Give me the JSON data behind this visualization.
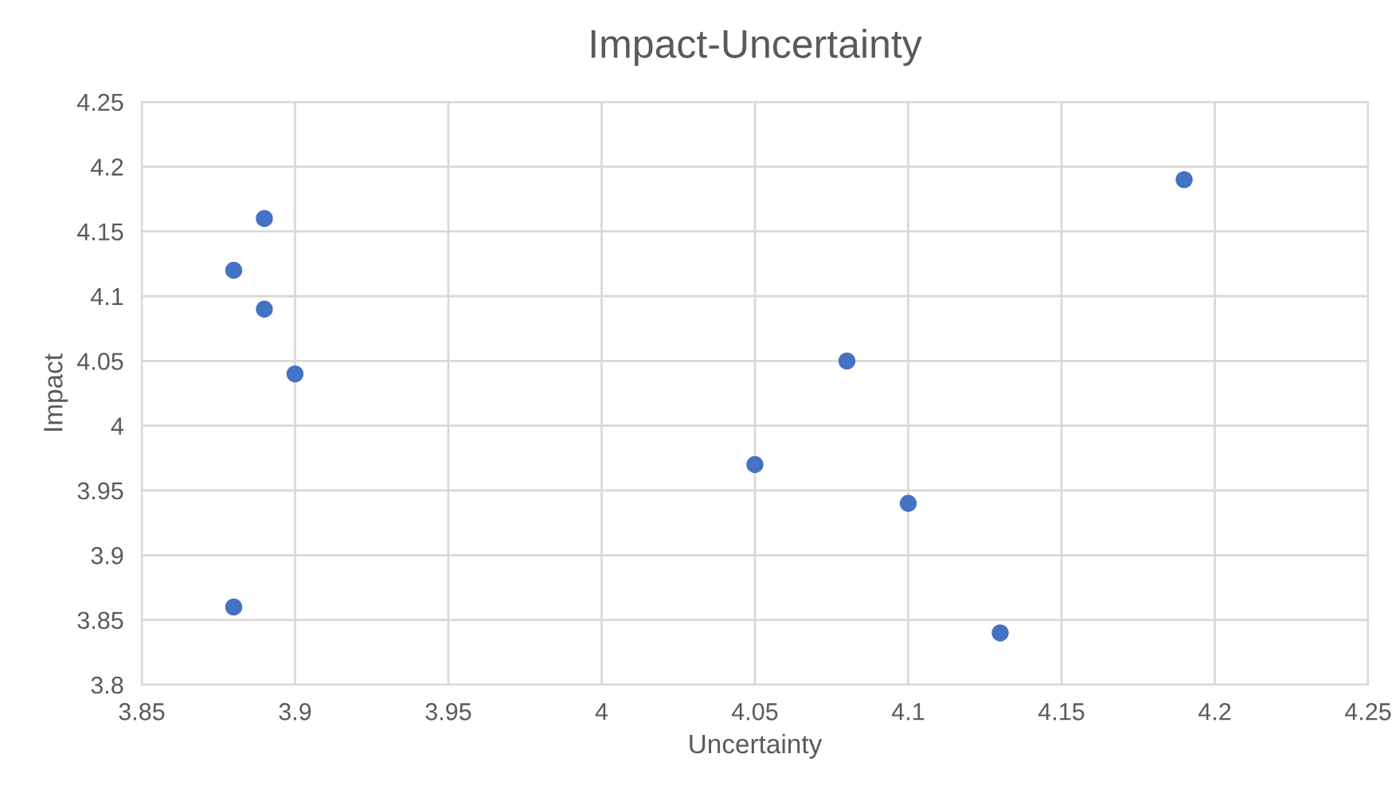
{
  "chart_data": {
    "type": "scatter",
    "title": "Impact-Uncertainty",
    "xlabel": "Uncertainty",
    "ylabel": "Impact",
    "x": [
      3.89,
      3.88,
      3.89,
      3.9,
      3.88,
      4.19,
      4.08,
      4.05,
      4.1,
      4.13
    ],
    "series": [
      {
        "color": "#4472c4",
        "values": [
          4.16,
          4.12,
          4.09,
          4.04,
          3.86,
          4.19,
          4.05,
          3.97,
          3.94,
          3.84
        ]
      }
    ],
    "xlim": [
      3.85,
      4.25
    ],
    "xticks": [
      3.85,
      3.9,
      3.95,
      4,
      4.05,
      4.1,
      4.15,
      4.2,
      4.25
    ],
    "ylim": [
      3.8,
      4.25
    ],
    "yticks": [
      3.8,
      3.85,
      3.9,
      3.95,
      4,
      4.05,
      4.1,
      4.15,
      4.2,
      4.25
    ],
    "grid": true,
    "marker": "circle"
  }
}
